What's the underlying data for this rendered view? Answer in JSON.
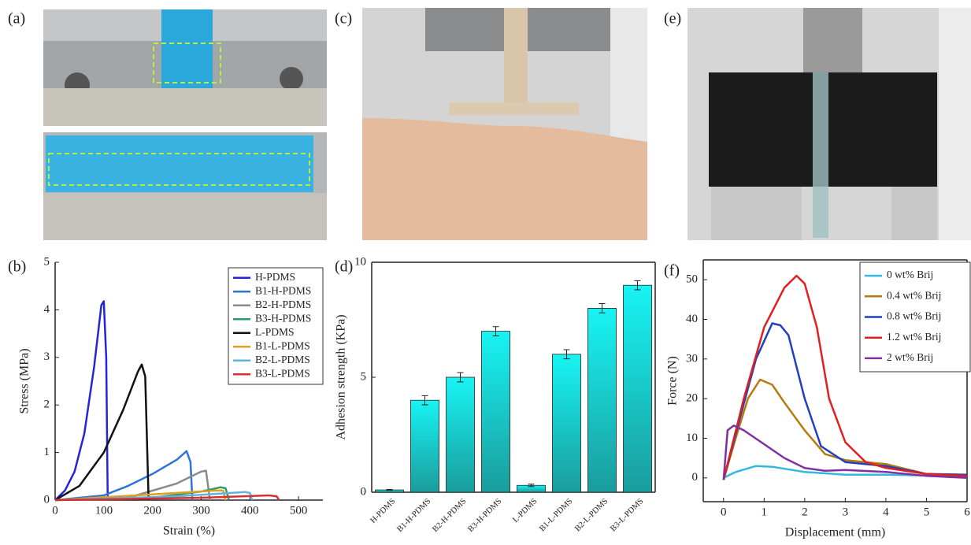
{
  "panel_labels": [
    "(a)",
    "(b)",
    "(c)",
    "(d)",
    "(e)",
    "(f)"
  ],
  "chart_data": [
    {
      "type": "line",
      "xlabel": "Strain (%)",
      "ylabel": "Stress (MPa)",
      "xlim": [
        0,
        550
      ],
      "ylim": [
        0,
        5
      ],
      "xticks": [
        0,
        100,
        200,
        300,
        400,
        500
      ],
      "yticks": [
        0,
        1,
        2,
        3,
        4,
        5
      ],
      "legend": "upper right",
      "series": [
        {
          "name": "H-PDMS",
          "color": "#2424d8",
          "x": [
            0,
            20,
            40,
            60,
            80,
            95,
            100,
            105,
            108
          ],
          "values": [
            0,
            0.2,
            0.6,
            1.4,
            2.8,
            4.1,
            4.18,
            3,
            0
          ]
        },
        {
          "name": "B1-H-PDMS",
          "color": "#2f74d8",
          "x": [
            0,
            100,
            150,
            200,
            250,
            270,
            278,
            282
          ],
          "values": [
            0,
            0.1,
            0.3,
            0.55,
            0.85,
            1.03,
            0.8,
            0
          ]
        },
        {
          "name": "B2-H-PDMS",
          "color": "#8a8a8a",
          "x": [
            0,
            150,
            250,
            300,
            310,
            318
          ],
          "values": [
            0,
            0.05,
            0.35,
            0.6,
            0.62,
            0
          ]
        },
        {
          "name": "B3-H-PDMS",
          "color": "#2f9a6a",
          "x": [
            0,
            200,
            300,
            340,
            350,
            357
          ],
          "values": [
            0,
            0.05,
            0.18,
            0.27,
            0.25,
            0
          ]
        },
        {
          "name": "L-PDMS",
          "color": "#111111",
          "x": [
            0,
            50,
            100,
            140,
            170,
            178,
            185,
            192
          ],
          "values": [
            0,
            0.3,
            1.0,
            1.9,
            2.7,
            2.85,
            2.6,
            0
          ]
        },
        {
          "name": "B1-L-PDMS",
          "color": "#e0a020",
          "x": [
            0,
            200,
            330,
            345,
            350
          ],
          "values": [
            0,
            0.12,
            0.2,
            0.2,
            0
          ]
        },
        {
          "name": "B2-L-PDMS",
          "color": "#5ab4e4",
          "x": [
            0,
            250,
            390,
            400,
            405
          ],
          "values": [
            0,
            0.08,
            0.17,
            0.15,
            0
          ]
        },
        {
          "name": "B3-L-PDMS",
          "color": "#d83030",
          "x": [
            0,
            300,
            440,
            455,
            460
          ],
          "values": [
            0,
            0.05,
            0.1,
            0.08,
            0
          ]
        }
      ]
    },
    {
      "type": "bar",
      "ylabel": "Adhesion strength (KPa)",
      "ylim": [
        0,
        10
      ],
      "yticks": [
        0,
        5,
        10
      ],
      "color": "#14d8d8",
      "categories": [
        "H-PDMS",
        "B1-H-PDMS",
        "B2-H-PDMS",
        "B3-H-PDMS",
        "L-PDMS",
        "B1-L-PDMS",
        "B2-L-PDMS",
        "B3-L-PDMS"
      ],
      "values": [
        0.1,
        4,
        5,
        7,
        0.3,
        6,
        8,
        9
      ],
      "errors": [
        0.02,
        0.2,
        0.2,
        0.2,
        0.05,
        0.2,
        0.2,
        0.2
      ]
    },
    {
      "type": "line",
      "xlabel": "Displacement (mm)",
      "ylabel": "Force (N)",
      "xlim": [
        -0.5,
        6
      ],
      "ylim": [
        -6,
        55
      ],
      "xticks": [
        0,
        1,
        2,
        3,
        4,
        5,
        6
      ],
      "yticks": [
        0,
        10,
        20,
        30,
        40,
        50
      ],
      "legend": "upper right",
      "series": [
        {
          "name": "0 wt% Brij",
          "color": "#30b8e0",
          "x": [
            0,
            0.3,
            0.8,
            1.2,
            2,
            3,
            4,
            5,
            6
          ],
          "values": [
            0,
            1.5,
            3,
            2.8,
            1.5,
            0.8,
            0.8,
            0.6,
            0.3
          ]
        },
        {
          "name": "0.4 wt% Brij",
          "color": "#b87a10",
          "x": [
            0,
            0.3,
            0.6,
            0.9,
            1.2,
            1.5,
            2,
            2.5,
            3,
            4,
            5,
            6
          ],
          "values": [
            -0.5,
            10,
            20,
            24.8,
            23.5,
            19,
            12,
            6,
            4.5,
            3.5,
            1,
            0.5
          ]
        },
        {
          "name": "0.8 wt% Brij",
          "color": "#2040c0",
          "x": [
            0,
            0.4,
            0.8,
            1.2,
            1.4,
            1.6,
            2,
            2.4,
            3,
            4,
            5,
            6
          ],
          "values": [
            -0.5,
            15,
            30,
            39,
            38.5,
            36,
            20,
            8,
            4,
            3,
            1,
            0.8
          ]
        },
        {
          "name": "1.2 wt% Brij",
          "color": "#e02020",
          "x": [
            0,
            0.5,
            1,
            1.5,
            1.8,
            2,
            2.3,
            2.6,
            3,
            3.5,
            4,
            5,
            6
          ],
          "values": [
            -0.5,
            20,
            38,
            48,
            51,
            49,
            38,
            20,
            9,
            4,
            2.5,
            1,
            0.5
          ]
        },
        {
          "name": "2 wt% Brij",
          "color": "#8030a0",
          "x": [
            0,
            0.1,
            0.25,
            0.5,
            1,
            1.5,
            2,
            2.5,
            3,
            4,
            5,
            6
          ],
          "values": [
            -0.5,
            12,
            13.2,
            12,
            8.5,
            5,
            2.5,
            1.8,
            2,
            1.5,
            0.5,
            0
          ]
        }
      ]
    }
  ]
}
